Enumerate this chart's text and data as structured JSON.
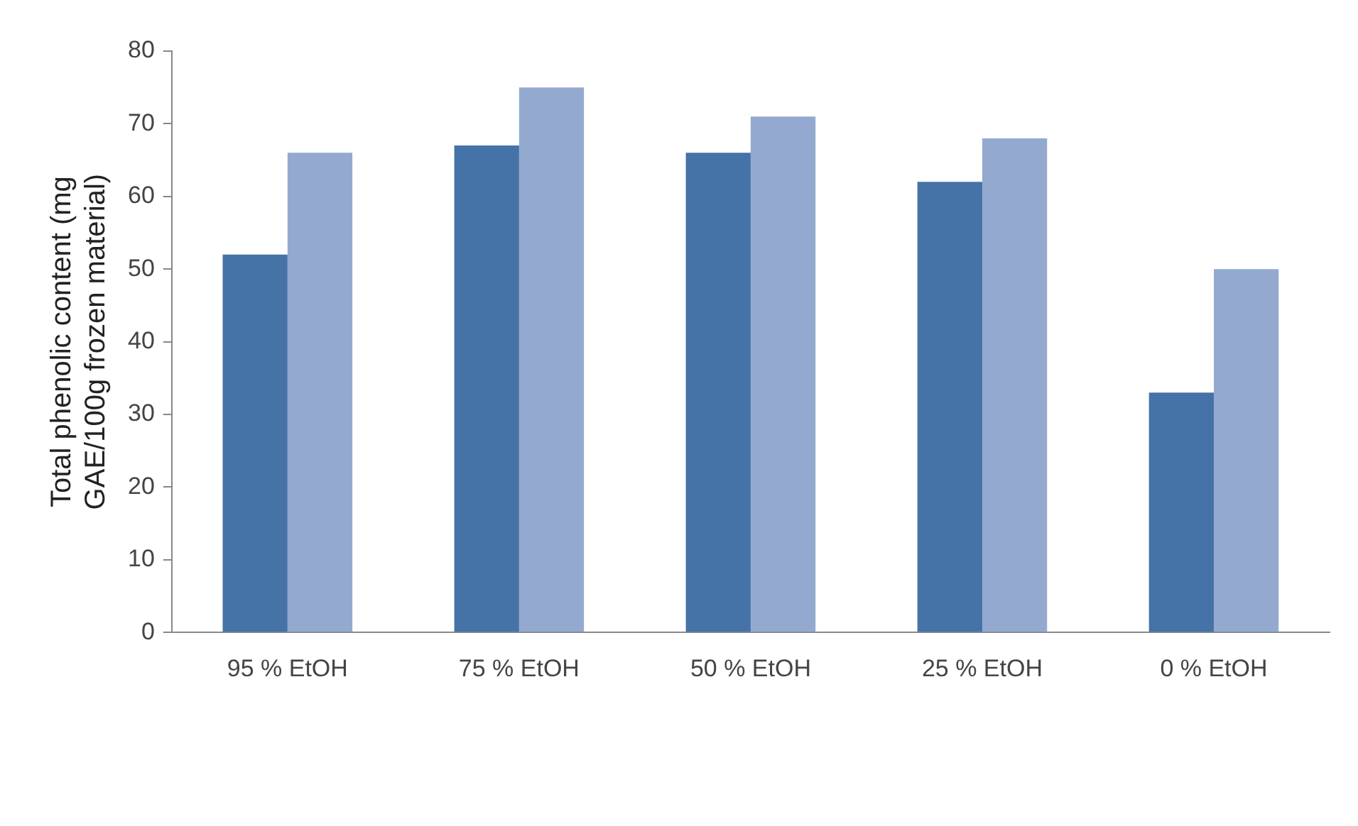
{
  "chart_data": {
    "type": "bar",
    "ylabel": "Total phenolic content (mg\nGAE/100g frozen material)",
    "categories": [
      "95 % EtOH",
      "75 % EtOH",
      "50 % EtOH",
      "25 % EtOH",
      "0 % EtOH"
    ],
    "series": [
      {
        "color": "#4572a7",
        "values": [
          52,
          67,
          66,
          62,
          33
        ]
      },
      {
        "color": "#93a9cf",
        "values": [
          66,
          75,
          71,
          68,
          50
        ]
      }
    ],
    "ylim": [
      0,
      80
    ],
    "yticks": [
      0,
      10,
      20,
      30,
      40,
      50,
      60,
      70,
      80
    ],
    "grid": false,
    "legend": false
  }
}
